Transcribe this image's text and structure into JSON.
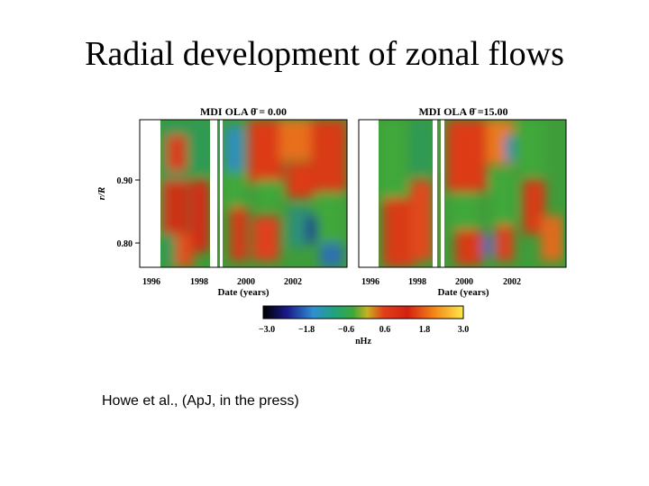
{
  "slide": {
    "title": "Radial development of zonal flows",
    "credit": "Howe et al., (ApJ, in the press)"
  },
  "panels": [
    {
      "title": "MDI  OLA  θ̄  =  0.00"
    },
    {
      "title": "MDI  OLA  θ̄  =15.00"
    }
  ],
  "axes": {
    "ylabel": "r/R",
    "xlabel": "Date (years)",
    "yticks": [
      "0.90",
      "0.80"
    ],
    "xticks": [
      "1996",
      "1998",
      "2000",
      "2002"
    ]
  },
  "colorbar": {
    "unit": "nHz",
    "ticks": [
      "−3.0",
      "−1.8",
      "−0.6",
      "0.6",
      "1.8",
      "3.0"
    ],
    "colors": [
      "#000000",
      "#1a1a8c",
      "#2f8fd0",
      "#1fa37a",
      "#3fa83a",
      "#c7b21e",
      "#e0401a",
      "#d42010",
      "#f28a18",
      "#ffe84a"
    ]
  }
}
